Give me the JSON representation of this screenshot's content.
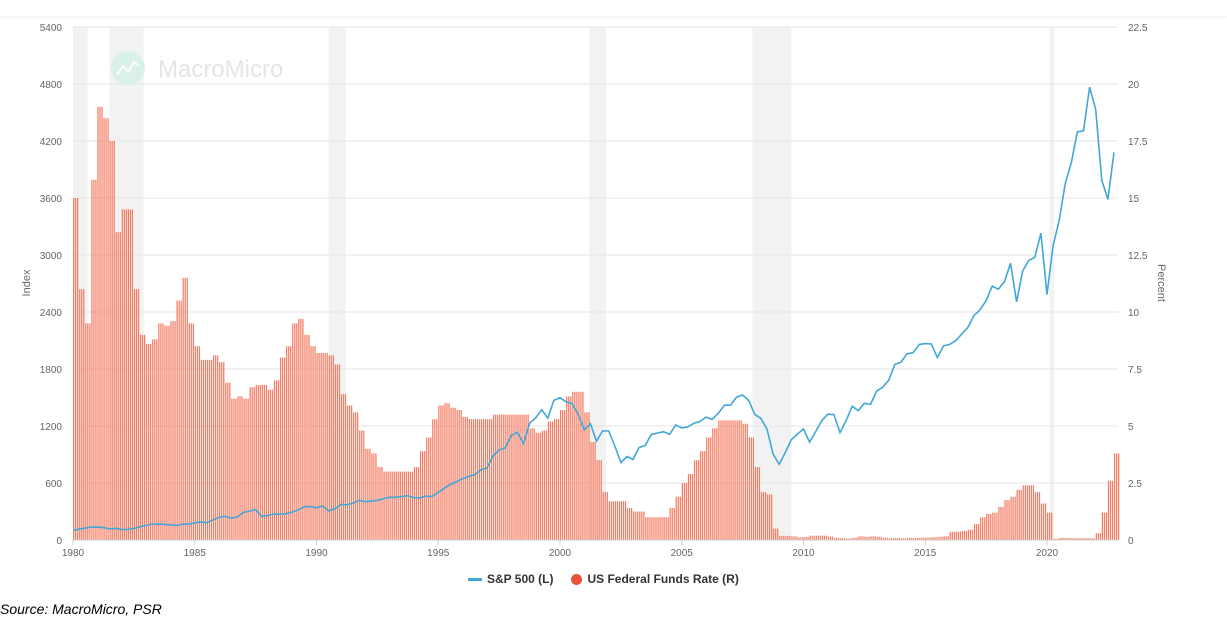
{
  "watermark": "MacroMicro",
  "source": "Source: MacroMicro, PSR",
  "colors": {
    "sp500": "#41a7d9",
    "fedfunds": "#f47c63",
    "fedfunds_legend": "#e8533a",
    "recession": "#f2f2f2",
    "grid": "#e6e6e6"
  },
  "chart_data": {
    "type": "line+bar",
    "xlabel": "",
    "ylabel": "Index",
    "ylabel_right": "Percent",
    "xlim": [
      1980,
      2022.9
    ],
    "ylim": [
      0,
      5400
    ],
    "ylim_right": [
      0,
      22.5
    ],
    "x_ticks": [
      "1980",
      "1985",
      "1990",
      "1995",
      "2000",
      "2005",
      "2010",
      "2015",
      "2020"
    ],
    "y_ticks": [
      "0",
      "600",
      "1200",
      "1800",
      "2400",
      "3000",
      "3600",
      "4200",
      "4800",
      "5400"
    ],
    "y_ticks_right": [
      "0",
      "2.5",
      "5",
      "7.5",
      "10",
      "12.5",
      "15",
      "17.5",
      "20",
      "22.5"
    ],
    "grid": true,
    "legend_placement": "bottom",
    "recessions": [
      [
        1980.0,
        1980.6
      ],
      [
        1981.5,
        1982.9
      ],
      [
        1990.5,
        1991.2
      ],
      [
        2001.2,
        2001.9
      ],
      [
        2007.9,
        2009.5
      ],
      [
        2020.1,
        2020.3
      ]
    ],
    "x_start": 1980,
    "x_step": "quarter",
    "series": [
      {
        "name": "S&P 500 (L)",
        "axis": "left",
        "kind": "line",
        "values": [
          102,
          114,
          125,
          136,
          136,
          131,
          116,
          123,
          112,
          110,
          120,
          140,
          153,
          168,
          166,
          165,
          159,
          153,
          166,
          167,
          181,
          191,
          182,
          211,
          238,
          250,
          231,
          242,
          291,
          304,
          321,
          247,
          258,
          273,
          271,
          277,
          294,
          317,
          349,
          353,
          339,
          358,
          306,
          330,
          375,
          371,
          387,
          417,
          403,
          408,
          417,
          435,
          451,
          450,
          458,
          466,
          445,
          444,
          462,
          459,
          500,
          544,
          584,
          615,
          645,
          670,
          687,
          740,
          757,
          885,
          947,
          970,
          1101,
          1133,
          1017,
          1229,
          1286,
          1372,
          1282,
          1469,
          1498,
          1454,
          1436,
          1320,
          1160,
          1224,
          1040,
          1148,
          1147,
          989,
          815,
          879,
          848,
          974,
          995,
          1111,
          1126,
          1140,
          1114,
          1211,
          1180,
          1191,
          1228,
          1248,
          1294,
          1270,
          1335,
          1418,
          1420,
          1503,
          1526,
          1468,
          1322,
          1280,
          1166,
          903,
          797,
          919,
          1057,
          1115,
          1169,
          1030,
          1141,
          1257,
          1325,
          1320,
          1131,
          1257,
          1408,
          1362,
          1440,
          1426,
          1569,
          1606,
          1681,
          1848,
          1872,
          1960,
          1972,
          2058,
          2067,
          2063,
          1920,
          2043,
          2059,
          2098,
          2168,
          2238,
          2362,
          2423,
          2519,
          2673,
          2640,
          2718,
          2913,
          2506,
          2834,
          2941,
          2976,
          3230,
          2584,
          3100,
          3363,
          3756,
          3972,
          4297,
          4307,
          4766,
          4530,
          3785,
          3585,
          4080
        ]
      },
      {
        "name": "US Federal Funds Rate (R)",
        "axis": "right",
        "kind": "bar",
        "values": [
          15.0,
          11.0,
          9.5,
          15.8,
          19.0,
          18.5,
          17.5,
          13.5,
          14.5,
          14.5,
          11.0,
          9.0,
          8.6,
          8.8,
          9.5,
          9.4,
          9.6,
          10.5,
          11.5,
          9.5,
          8.5,
          7.9,
          7.9,
          8.1,
          7.8,
          6.9,
          6.2,
          6.3,
          6.2,
          6.7,
          6.8,
          6.8,
          6.6,
          7.0,
          8.0,
          8.5,
          9.5,
          9.7,
          9.0,
          8.5,
          8.2,
          8.2,
          8.1,
          7.7,
          6.4,
          5.9,
          5.6,
          4.8,
          4.0,
          3.8,
          3.2,
          3.0,
          3.0,
          3.0,
          3.0,
          3.0,
          3.2,
          3.9,
          4.5,
          5.3,
          5.9,
          6.0,
          5.8,
          5.7,
          5.4,
          5.3,
          5.3,
          5.3,
          5.3,
          5.5,
          5.5,
          5.5,
          5.5,
          5.5,
          5.5,
          4.9,
          4.7,
          4.8,
          5.2,
          5.3,
          5.7,
          6.3,
          6.5,
          6.5,
          5.6,
          4.3,
          3.5,
          2.1,
          1.7,
          1.7,
          1.7,
          1.4,
          1.25,
          1.25,
          1.0,
          1.0,
          1.0,
          1.0,
          1.4,
          1.9,
          2.5,
          2.9,
          3.5,
          3.9,
          4.5,
          4.9,
          5.25,
          5.25,
          5.25,
          5.25,
          5.1,
          4.5,
          3.2,
          2.1,
          2.0,
          0.5,
          0.18,
          0.18,
          0.16,
          0.12,
          0.13,
          0.19,
          0.19,
          0.19,
          0.15,
          0.09,
          0.08,
          0.07,
          0.1,
          0.16,
          0.14,
          0.16,
          0.14,
          0.1,
          0.08,
          0.09,
          0.07,
          0.09,
          0.09,
          0.1,
          0.11,
          0.12,
          0.14,
          0.16,
          0.36,
          0.37,
          0.4,
          0.45,
          0.7,
          1.0,
          1.15,
          1.2,
          1.45,
          1.75,
          1.9,
          2.2,
          2.4,
          2.4,
          2.1,
          1.6,
          1.2,
          0.05,
          0.09,
          0.09,
          0.08,
          0.08,
          0.08,
          0.08,
          0.3,
          1.2,
          2.6,
          3.8
        ]
      }
    ]
  }
}
